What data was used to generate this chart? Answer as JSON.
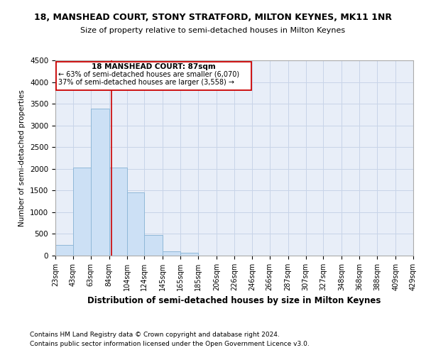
{
  "title": "18, MANSHEAD COURT, STONY STRATFORD, MILTON KEYNES, MK11 1NR",
  "subtitle": "Size of property relative to semi-detached houses in Milton Keynes",
  "xlabel": "Distribution of semi-detached houses by size in Milton Keynes",
  "ylabel": "Number of semi-detached properties",
  "footer_line1": "Contains HM Land Registry data © Crown copyright and database right 2024.",
  "footer_line2": "Contains public sector information licensed under the Open Government Licence v3.0.",
  "annotation_title": "18 MANSHEAD COURT: 87sqm",
  "annotation_line1": "← 63% of semi-detached houses are smaller (6,070)",
  "annotation_line2": "37% of semi-detached houses are larger (3,558) →",
  "property_size": 87,
  "bin_edges": [
    23,
    43,
    63,
    84,
    104,
    124,
    145,
    165,
    185,
    206,
    226,
    246,
    266,
    287,
    307,
    327,
    348,
    368,
    388,
    409,
    429
  ],
  "bin_counts": [
    250,
    2030,
    3380,
    2030,
    1460,
    470,
    100,
    70,
    0,
    0,
    0,
    0,
    0,
    0,
    0,
    0,
    0,
    0,
    0,
    0
  ],
  "bar_color": "#cce0f5",
  "bar_edge_color": "#90b8d8",
  "vline_color": "#cc0000",
  "annotation_box_color": "#cc0000",
  "grid_color": "#c8d4e8",
  "background_color": "#e8eef8",
  "ylim": [
    0,
    4500
  ],
  "yticks": [
    0,
    500,
    1000,
    1500,
    2000,
    2500,
    3000,
    3500,
    4000,
    4500
  ],
  "tick_labels": [
    "23sqm",
    "43sqm",
    "63sqm",
    "84sqm",
    "104sqm",
    "124sqm",
    "145sqm",
    "165sqm",
    "185sqm",
    "206sqm",
    "226sqm",
    "246sqm",
    "266sqm",
    "287sqm",
    "307sqm",
    "327sqm",
    "348sqm",
    "368sqm",
    "388sqm",
    "409sqm",
    "429sqm"
  ]
}
